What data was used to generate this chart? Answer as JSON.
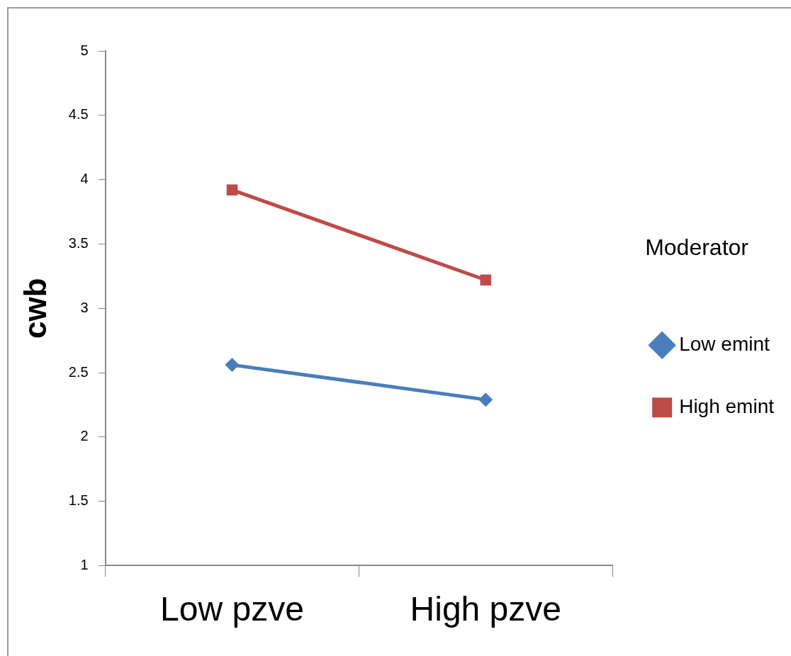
{
  "chart_data": {
    "type": "line",
    "ylabel": "cwb",
    "legend_title": "Moderator",
    "categories": [
      "Low pzve",
      "High pzve"
    ],
    "series": [
      {
        "name": "Low emint",
        "color": "#4a7ebb",
        "marker": "diamond",
        "values": [
          2.56,
          2.29
        ]
      },
      {
        "name": "High emint",
        "color": "#be4b48",
        "marker": "square",
        "values": [
          3.92,
          3.22
        ]
      }
    ],
    "ylim": [
      1,
      5
    ],
    "yticks": [
      1,
      1.5,
      2,
      2.5,
      3,
      3.5,
      4,
      4.5,
      5
    ],
    "grid": false,
    "legend": "right",
    "line_style": "solid"
  }
}
